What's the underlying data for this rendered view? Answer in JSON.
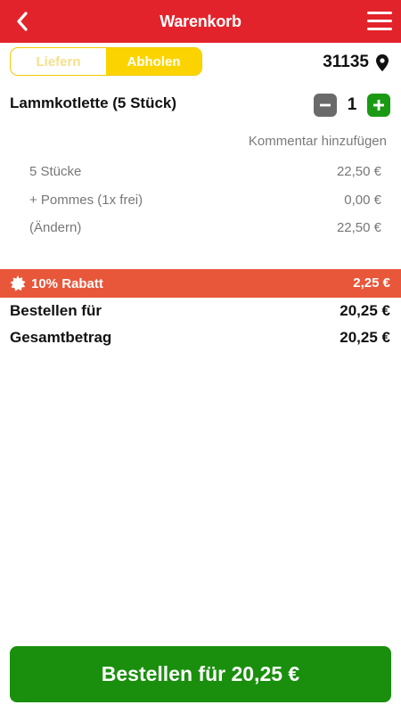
{
  "header": {
    "title": "Warenkorb",
    "back_icon": "chevron-left-icon",
    "menu_icon": "hamburger-menu-icon",
    "color": "#e3232b"
  },
  "delivery": {
    "options": [
      "Liefern",
      "Abholen"
    ],
    "selected": "Abholen",
    "postal_code": "31135",
    "location_icon": "map-pin-icon"
  },
  "cart": {
    "item_name": "Lammkotlette (5 Stück)",
    "quantity": "1",
    "comment_link": "Kommentar hinzufügen",
    "details": [
      {
        "label": "5 Stücke",
        "price": "22,50 €"
      },
      {
        "label": "+ Pommes (1x frei)",
        "price": "0,00 €"
      },
      {
        "label": "(Ändern)",
        "price": "22,50 €"
      }
    ]
  },
  "discount": {
    "label": "10% Rabatt",
    "amount": "2,25 €",
    "icon": "badge-icon",
    "color": "#e8573a"
  },
  "totals": {
    "order_for_label": "Bestellen für",
    "order_for_value": "20,25 €",
    "total_label": "Gesamtbetrag",
    "total_value": "20,25 €"
  },
  "order_button": {
    "label": "Bestellen für 20,25 €",
    "color": "#1a8f0d"
  }
}
